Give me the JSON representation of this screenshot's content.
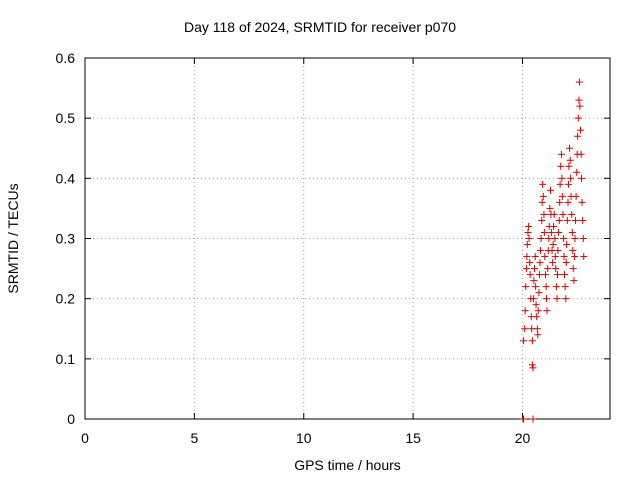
{
  "chart_data": {
    "type": "scatter",
    "title": "Day 118 of 2024, SRMTID for receiver p070",
    "xlabel": "GPS time / hours",
    "ylabel": "SRMTID / TECUs",
    "xlim": [
      0,
      24
    ],
    "ylim": [
      0,
      0.6
    ],
    "x_ticks": [
      0,
      5,
      10,
      15,
      20
    ],
    "x_tick_labels": [
      "0",
      "5",
      "10",
      "15",
      "20"
    ],
    "y_ticks": [
      0,
      0.1,
      0.2,
      0.3,
      0.4,
      0.5,
      0.6
    ],
    "y_tick_labels": [
      "0",
      "0.1",
      "0.2",
      "0.3",
      "0.4",
      "0.5",
      "0.6"
    ],
    "grid": true,
    "marker": "+",
    "marker_color": "#dd0000",
    "series": [
      {
        "name": "p070",
        "points": [
          [
            20.02,
            0.0
          ],
          [
            20.05,
            0.0
          ],
          [
            20.48,
            0.0
          ],
          [
            20.05,
            0.13
          ],
          [
            20.1,
            0.15
          ],
          [
            20.12,
            0.18
          ],
          [
            20.15,
            0.22
          ],
          [
            20.18,
            0.25
          ],
          [
            20.2,
            0.27
          ],
          [
            20.22,
            0.29
          ],
          [
            20.25,
            0.31
          ],
          [
            20.28,
            0.32
          ],
          [
            20.3,
            0.3
          ],
          [
            20.33,
            0.26
          ],
          [
            20.35,
            0.24
          ],
          [
            20.38,
            0.2
          ],
          [
            20.4,
            0.17
          ],
          [
            20.42,
            0.15
          ],
          [
            20.45,
            0.13
          ],
          [
            20.45,
            0.09
          ],
          [
            20.48,
            0.085
          ],
          [
            20.5,
            0.2
          ],
          [
            20.52,
            0.23
          ],
          [
            20.55,
            0.25
          ],
          [
            20.58,
            0.27
          ],
          [
            20.6,
            0.22
          ],
          [
            20.62,
            0.19
          ],
          [
            20.65,
            0.17
          ],
          [
            20.68,
            0.15
          ],
          [
            20.7,
            0.14
          ],
          [
            20.72,
            0.18
          ],
          [
            20.75,
            0.21
          ],
          [
            20.78,
            0.24
          ],
          [
            20.8,
            0.26
          ],
          [
            20.82,
            0.28
          ],
          [
            20.85,
            0.3
          ],
          [
            20.88,
            0.33
          ],
          [
            20.9,
            0.36
          ],
          [
            20.92,
            0.39
          ],
          [
            20.95,
            0.37
          ],
          [
            20.98,
            0.34
          ],
          [
            21.0,
            0.31
          ],
          [
            21.02,
            0.27
          ],
          [
            21.05,
            0.24
          ],
          [
            21.08,
            0.22
          ],
          [
            21.1,
            0.2
          ],
          [
            21.12,
            0.18
          ],
          [
            21.15,
            0.25
          ],
          [
            21.18,
            0.28
          ],
          [
            21.2,
            0.3
          ],
          [
            21.22,
            0.32
          ],
          [
            21.25,
            0.35
          ],
          [
            21.28,
            0.38
          ],
          [
            21.3,
            0.34
          ],
          [
            21.32,
            0.31
          ],
          [
            21.35,
            0.28
          ],
          [
            21.38,
            0.26
          ],
          [
            21.4,
            0.29
          ],
          [
            21.42,
            0.32
          ],
          [
            21.45,
            0.34
          ],
          [
            21.48,
            0.3
          ],
          [
            21.5,
            0.27
          ],
          [
            21.52,
            0.25
          ],
          [
            21.55,
            0.22
          ],
          [
            21.58,
            0.2
          ],
          [
            21.6,
            0.24
          ],
          [
            21.62,
            0.28
          ],
          [
            21.65,
            0.31
          ],
          [
            21.68,
            0.33
          ],
          [
            21.7,
            0.36
          ],
          [
            21.72,
            0.39
          ],
          [
            21.75,
            0.42
          ],
          [
            21.78,
            0.44
          ],
          [
            21.8,
            0.4
          ],
          [
            21.82,
            0.37
          ],
          [
            21.85,
            0.34
          ],
          [
            21.88,
            0.3
          ],
          [
            21.9,
            0.27
          ],
          [
            21.92,
            0.24
          ],
          [
            21.95,
            0.22
          ],
          [
            21.98,
            0.2
          ],
          [
            22.0,
            0.26
          ],
          [
            22.02,
            0.29
          ],
          [
            22.05,
            0.33
          ],
          [
            22.08,
            0.36
          ],
          [
            22.1,
            0.39
          ],
          [
            22.12,
            0.42
          ],
          [
            22.15,
            0.45
          ],
          [
            22.18,
            0.43
          ],
          [
            22.2,
            0.4
          ],
          [
            22.22,
            0.37
          ],
          [
            22.25,
            0.34
          ],
          [
            22.28,
            0.31
          ],
          [
            22.3,
            0.28
          ],
          [
            22.32,
            0.25
          ],
          [
            22.35,
            0.23
          ],
          [
            22.38,
            0.27
          ],
          [
            22.4,
            0.3
          ],
          [
            22.42,
            0.33
          ],
          [
            22.45,
            0.37
          ],
          [
            22.48,
            0.41
          ],
          [
            22.5,
            0.44
          ],
          [
            22.52,
            0.47
          ],
          [
            22.55,
            0.5
          ],
          [
            22.58,
            0.53
          ],
          [
            22.6,
            0.56
          ],
          [
            22.62,
            0.52
          ],
          [
            22.65,
            0.48
          ],
          [
            22.68,
            0.44
          ],
          [
            22.7,
            0.4
          ],
          [
            22.72,
            0.36
          ],
          [
            22.75,
            0.33
          ],
          [
            22.78,
            0.3
          ],
          [
            22.8,
            0.27
          ]
        ]
      }
    ]
  }
}
